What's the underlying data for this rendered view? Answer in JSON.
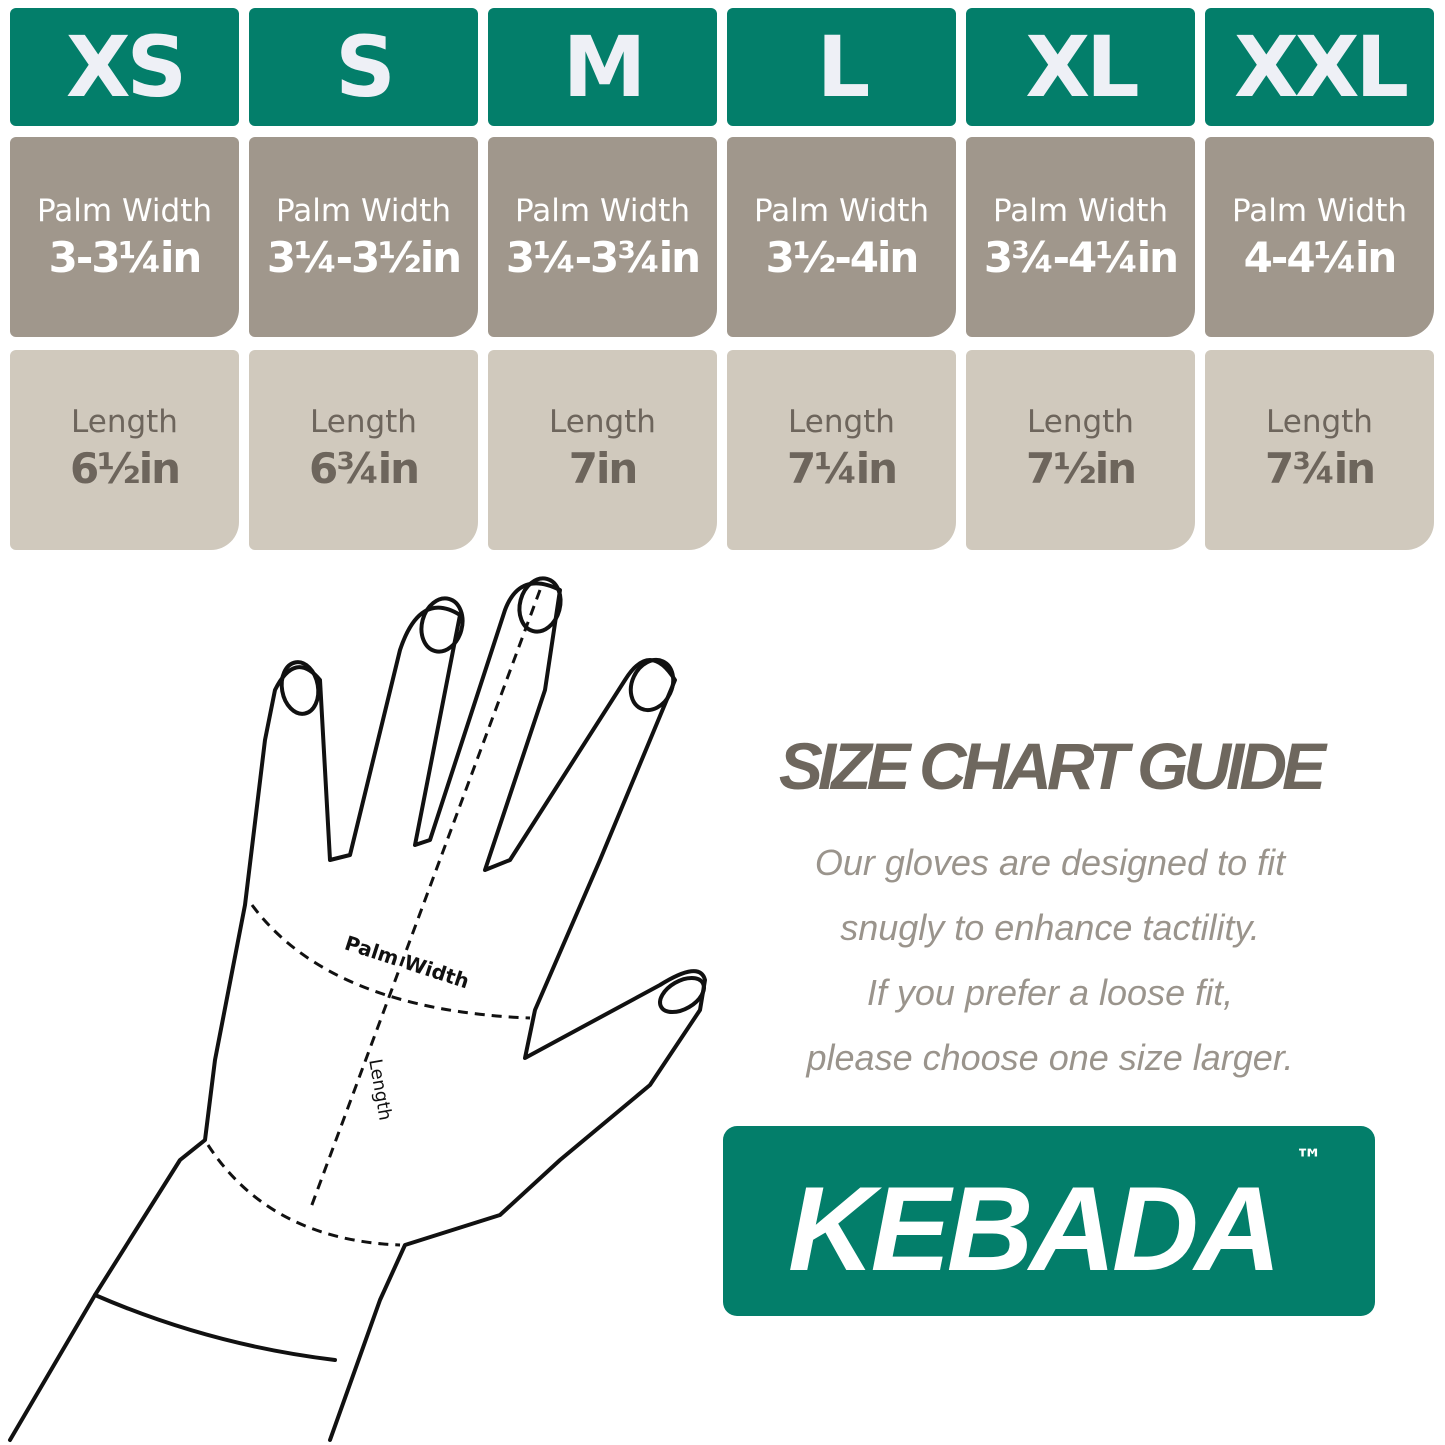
{
  "sizes": [
    {
      "size": "XS",
      "palm_label": "Palm Width",
      "palm_value": "3-3¼in",
      "length_label": "Length",
      "length_value": "6½in"
    },
    {
      "size": "S",
      "palm_label": "Palm Width",
      "palm_value": "3¼-3½in",
      "length_label": "Length",
      "length_value": "6¾in"
    },
    {
      "size": "M",
      "palm_label": "Palm Width",
      "palm_value": "3¼-3¾in",
      "length_label": "Length",
      "length_value": "7in"
    },
    {
      "size": "L",
      "palm_label": "Palm Width",
      "palm_value": "3½-4in",
      "length_label": "Length",
      "length_value": "7¼in"
    },
    {
      "size": "XL",
      "palm_label": "Palm Width",
      "palm_value": "3¾-4¼in",
      "length_label": "Length",
      "length_value": "7½in"
    },
    {
      "size": "XXL",
      "palm_label": "Palm Width",
      "palm_value": "4-4¼in",
      "length_label": "Length",
      "length_value": "7¾in"
    }
  ],
  "diagram": {
    "palm_width_label": "Palm Width",
    "length_label": "Length"
  },
  "guide": {
    "title": "SIZE CHART GUIDE",
    "lines": [
      "Our gloves are designed to fit",
      "snugly to enhance tactility.",
      "If you prefer a loose fit,",
      "please choose one size larger."
    ]
  },
  "brand": {
    "name": "KEBADA",
    "trademark": "™"
  },
  "colors": {
    "header": "#037e6a",
    "palm": "#a0978c",
    "length": "#d0c9bd",
    "title": "#6e675e",
    "brand_bg": "#037e6a"
  }
}
